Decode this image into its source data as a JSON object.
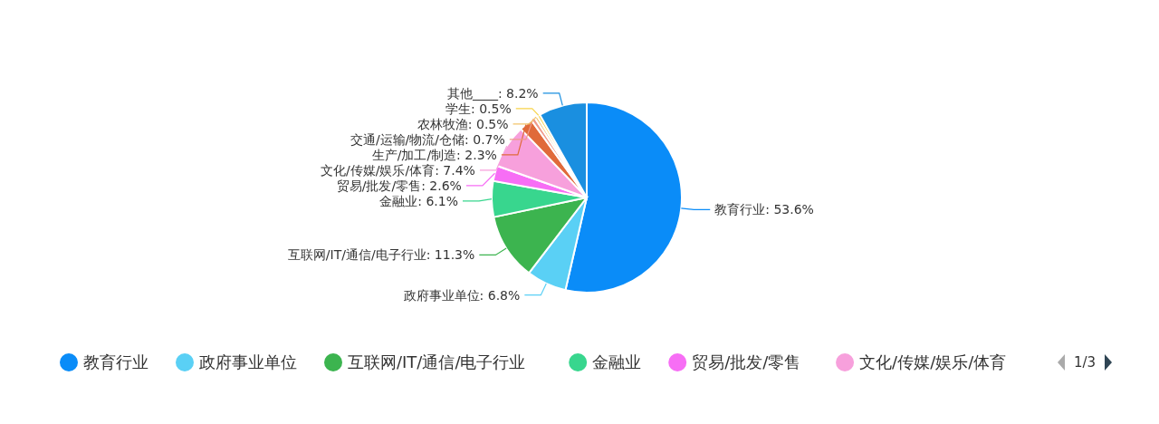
{
  "chart_data": {
    "type": "pie",
    "categories": [
      "教育行业",
      "政府事业单位",
      "互联网/IT/通信/电子行业",
      "金融业",
      "贸易/批发/零售",
      "文化/传媒/娱乐/体育",
      "生产/加工/制造",
      "交通/运输/物流/仓储",
      "农林牧渔",
      "学生",
      "其他____"
    ],
    "values": [
      53.6,
      6.8,
      11.3,
      6.1,
      2.6,
      7.4,
      2.3,
      0.7,
      0.5,
      0.5,
      8.2
    ],
    "colors": [
      "#0a8cf8",
      "#5ad0f5",
      "#3cb44f",
      "#38d68e",
      "#f76ef5",
      "#f7a0dc",
      "#e06a3a",
      "#f09a8a",
      "#f2c46b",
      "#f7d44a",
      "#1a8fe0"
    ],
    "value_labels": [
      ": 53.6%",
      ": 6.8%",
      ": 11.3%",
      ": 6.1%",
      ": 2.6%",
      ": 7.4%",
      ": 2.3%",
      ": 0.7%",
      ": 0.5%",
      ": 0.5%",
      ": 8.2%"
    ],
    "legend": "bottom",
    "annotations": [
      "1/3"
    ]
  }
}
